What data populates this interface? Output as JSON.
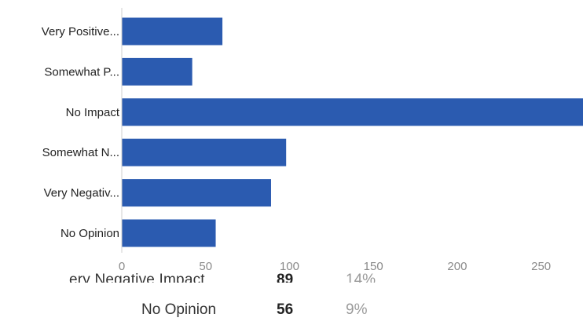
{
  "chart_data": {
    "type": "bar",
    "orientation": "horizontal",
    "categories": [
      "Very Positive...",
      "Somewhat P...",
      "No Impact",
      "Somewhat N...",
      "Very Negativ...",
      "No Opinion"
    ],
    "values": [
      60,
      42,
      275,
      98,
      89,
      56
    ],
    "xlim": [
      0,
      275
    ],
    "x_ticks": [
      0,
      50,
      100,
      150,
      200,
      250
    ],
    "bar_color": "#2b5bb0",
    "grid": false
  },
  "summary_table": {
    "partial_row": {
      "label": "ery Negative Impact",
      "count": "89",
      "pct": "14%"
    },
    "row": {
      "label": "No Opinion",
      "count": "56",
      "pct": "9%"
    }
  }
}
